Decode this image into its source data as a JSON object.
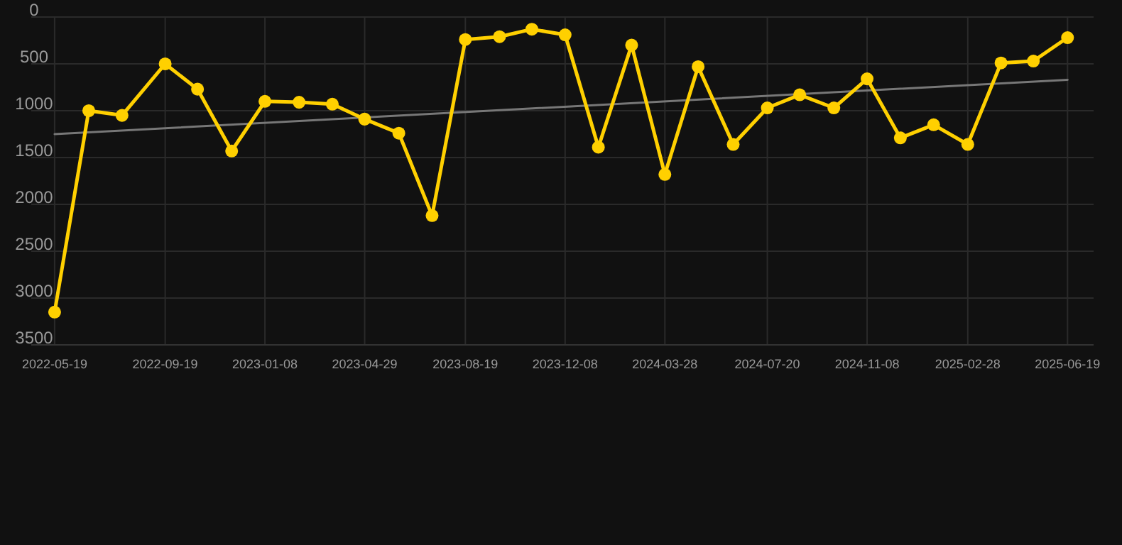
{
  "chart_data": {
    "type": "line",
    "x": [
      "2022-05-19",
      "2022-06-26",
      "2022-08-02",
      "2022-09-19",
      "2022-10-25",
      "2022-12-02",
      "2023-01-08",
      "2023-02-15",
      "2023-03-24",
      "2023-04-29",
      "2023-06-06",
      "2023-07-13",
      "2023-08-19",
      "2023-09-26",
      "2023-11-01",
      "2023-12-08",
      "2024-01-14",
      "2024-02-20",
      "2024-03-28",
      "2024-05-04",
      "2024-06-12",
      "2024-07-20",
      "2024-08-25",
      "2024-10-02",
      "2024-11-08",
      "2024-12-15",
      "2025-01-21",
      "2025-02-28",
      "2025-04-06",
      "2025-05-12",
      "2025-06-19"
    ],
    "series": [
      {
        "color": "#ffd000",
        "marker": "circle",
        "values": [
          3150,
          1000,
          1050,
          500,
          770,
          1430,
          900,
          910,
          930,
          1090,
          1240,
          2120,
          240,
          210,
          130,
          190,
          1390,
          300,
          1680,
          530,
          1360,
          970,
          830,
          970,
          660,
          1290,
          1150,
          1360,
          490,
          470,
          220
        ]
      },
      {
        "type": "line",
        "color": "#777777",
        "marker": "none",
        "x": [
          "2022-05-19",
          "2025-06-19"
        ],
        "values": [
          1250,
          670
        ]
      }
    ],
    "xlim": [
      "2022-04-23",
      "2025-07-18"
    ],
    "xticks": [
      "2022-05-19",
      "2022-09-19",
      "2023-01-08",
      "2023-04-29",
      "2023-08-19",
      "2023-12-08",
      "2024-03-28",
      "2024-07-20",
      "2024-11-08",
      "2025-02-28",
      "2025-06-19"
    ],
    "ylim": [
      3500,
      0
    ],
    "yticks": [
      0,
      500,
      1000,
      1500,
      2000,
      2500,
      3000,
      3500
    ],
    "grid": true
  }
}
